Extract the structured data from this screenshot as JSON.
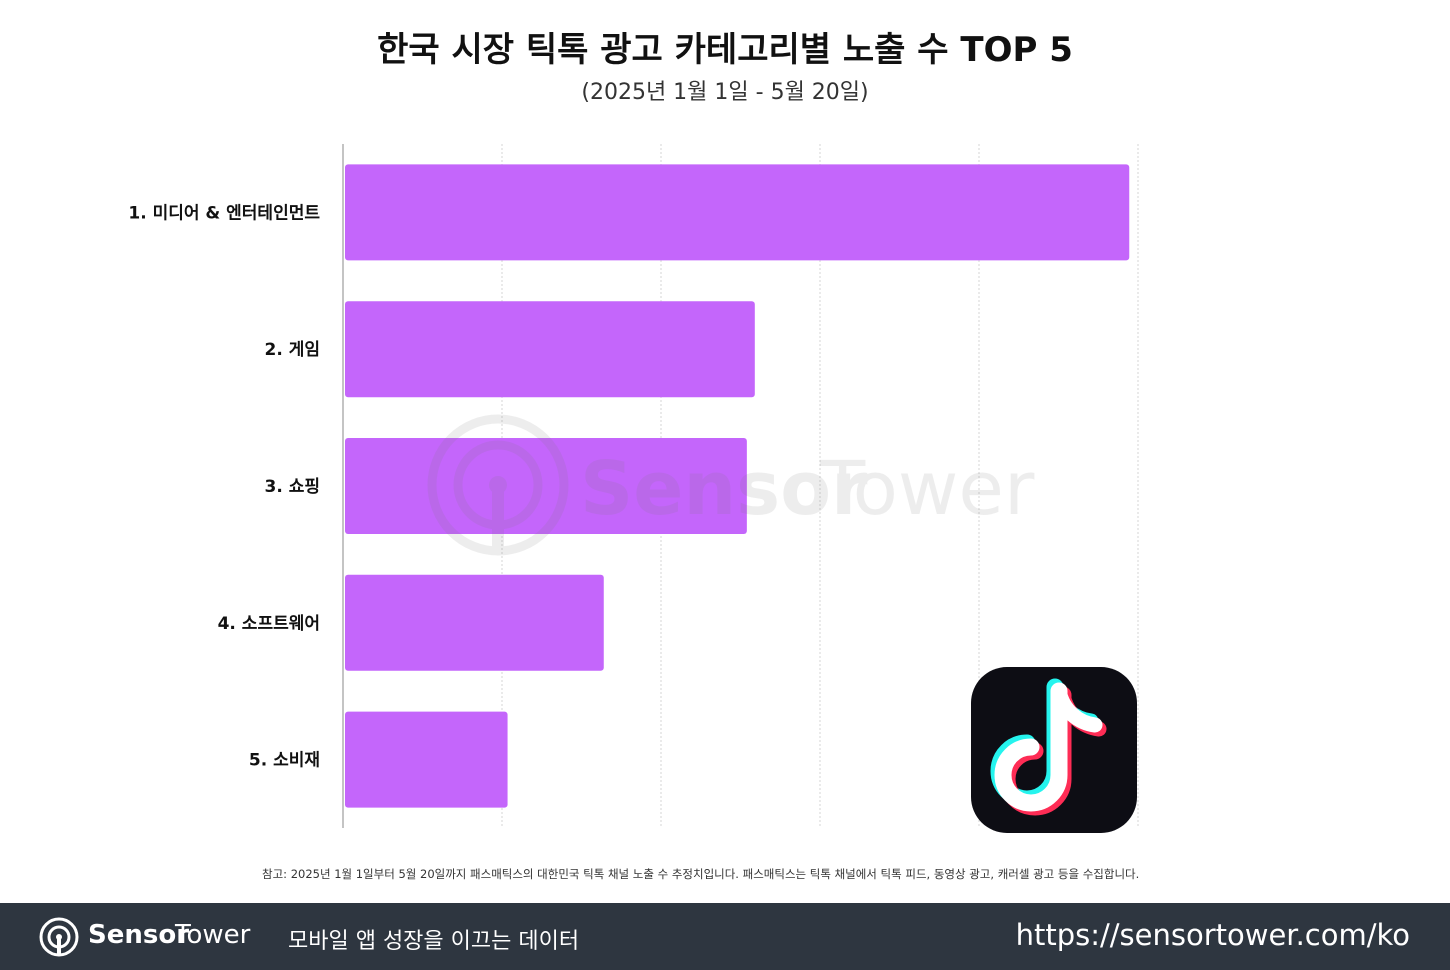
{
  "chart_data": {
    "type": "bar",
    "orientation": "horizontal",
    "title": "한국 시장 틱톡 광고 카테고리별 노출 수 TOP 5",
    "subtitle": "(2025년 1월 1일 - 5월 20일)",
    "categories": [
      "1. 미디어 & 엔터테인먼트",
      "2. 게임",
      "3. 쇼핑",
      "4. 소프트웨어",
      "5. 소비재"
    ],
    "values": [
      98.9,
      51.8,
      50.8,
      32.8,
      20.7
    ],
    "xlim": [
      0,
      100
    ],
    "grid": true,
    "tick_labels_visible": false,
    "bar_color": "#c466fb",
    "grid_color": "#d4d4d4"
  },
  "note": "참고: 2025년 1월 1일부터 5월 20일까지 패스매틱스의 대한민국 틱톡 채널 노출 수 추정치입니다. 패스매틱스는 틱톡 채널에서 틱톡 피드, 동영상 광고, 캐러셀 광고 등을 수집합니다.",
  "watermark": {
    "brand_a": "Sensor",
    "brand_b": "Tower"
  },
  "logo_icon": "tiktok-icon",
  "footer": {
    "brand_a": "Sensor",
    "brand_b": "Tower",
    "tagline": "모바일 앱 성장을 이끄는 데이터",
    "url": "https://sensortower.com/ko",
    "background": "#2e3640"
  }
}
